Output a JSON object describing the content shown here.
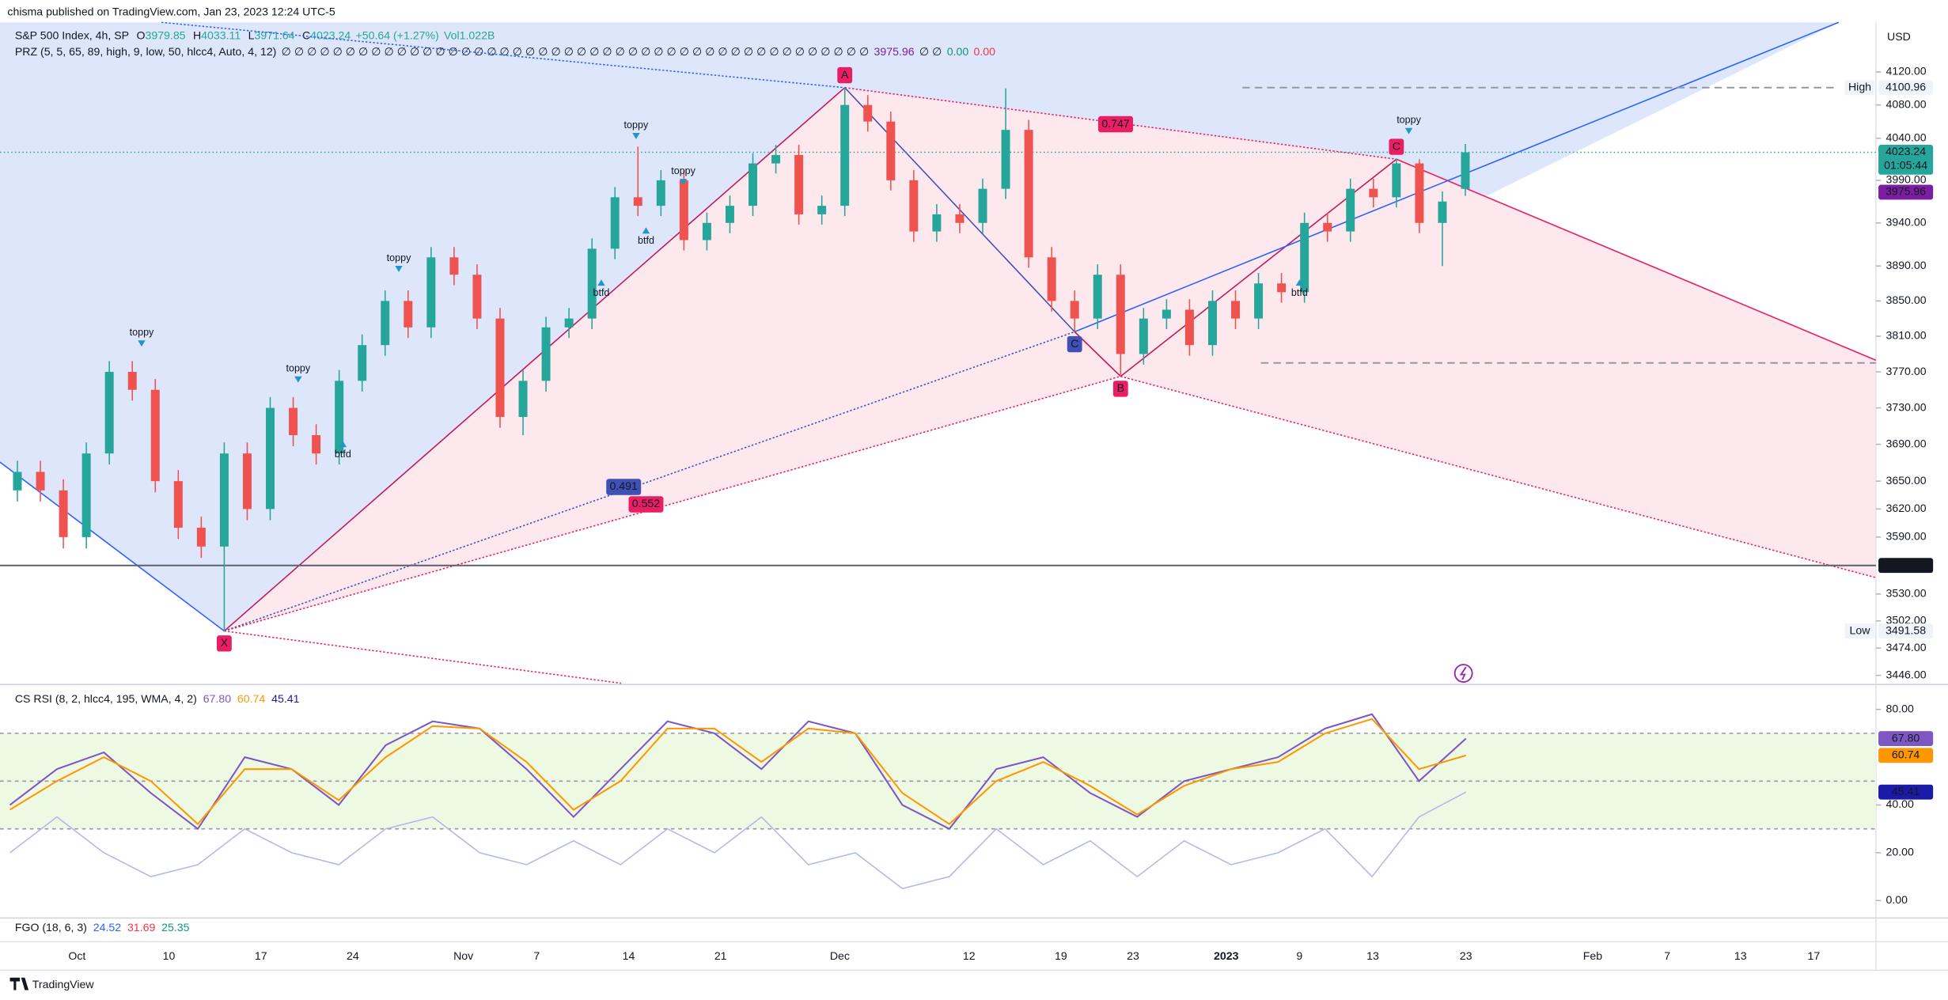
{
  "header": {
    "publisher": "chisma published on TradingView.com, Jan 23, 2023 12:24 UTC-5",
    "symbol": "S&P 500 Index, 4h, SP",
    "ohlc_letters": [
      "O",
      "H",
      "L",
      "C"
    ],
    "change": "+50.64 (+1.27%)",
    "volume": "Vol1.022B",
    "indicator": "PRZ (5, 5, 65, 89, high, 9, low, 50, hlcc4, Auto, 4, 12)",
    "indicator_nulls": "∅ ∅ ∅ ∅ ∅ ∅ ∅ ∅ ∅ ∅ ∅ ∅ ∅ ∅ ∅ ∅ ∅ ∅ ∅ ∅ ∅ ∅ ∅ ∅ ∅ ∅ ∅ ∅ ∅ ∅ ∅ ∅ ∅ ∅ ∅ ∅ ∅ ∅ ∅ ∅ ∅ ∅ ∅ ∅ ∅ ∅",
    "indicator_tail": [
      "∅ ∅",
      "0.00",
      "0.00"
    ]
  },
  "chart_data": [
    {
      "type": "candlestick",
      "currency": "USD",
      "log": true,
      "ylim": [
        3438,
        4181
      ],
      "yticks": [
        {
          "value": 4120,
          "label": "4120.00"
        },
        {
          "value": 4080,
          "label": "4080.00"
        },
        {
          "value": 4040,
          "label": "4040.00"
        },
        {
          "value": 3990,
          "label": "3990.00"
        },
        {
          "value": 3940,
          "label": "3940.00"
        },
        {
          "value": 3890,
          "label": "3890.00"
        },
        {
          "value": 3850,
          "label": "3850.00"
        },
        {
          "value": 3810,
          "label": "3810.00"
        },
        {
          "value": 3770,
          "label": "3770.00"
        },
        {
          "value": 3730,
          "label": "3730.00"
        },
        {
          "value": 3690,
          "label": "3690.00"
        },
        {
          "value": 3650,
          "label": "3650.00"
        },
        {
          "value": 3620,
          "label": "3620.00"
        },
        {
          "value": 3590,
          "label": "3590.00"
        },
        {
          "value": 3530,
          "label": "3530.00"
        },
        {
          "value": 3502,
          "label": "3502.00"
        },
        {
          "value": 3474,
          "label": "3474.00"
        },
        {
          "value": 3446,
          "label": "3446.00"
        }
      ],
      "xticks": [
        "Oct",
        "10",
        "17",
        "24",
        "Nov",
        "7",
        "14",
        "21",
        "Dec",
        "12",
        "19",
        "23",
        "2023",
        "9",
        "13",
        "23",
        "Feb",
        "7",
        "13",
        "17"
      ],
      "up_color": "#26a69a",
      "down_color": "#ef5350",
      "open": [
        3640,
        3660,
        3640,
        3590,
        3680,
        3770,
        3750,
        3650,
        3600,
        3580,
        3680,
        3620,
        3730,
        3700,
        3680,
        3760,
        3800,
        3850,
        3820,
        3900,
        3880,
        3830,
        3720,
        3760,
        3820,
        3830,
        3910,
        3970,
        3960,
        3990,
        3920,
        3940,
        3960,
        4010,
        4020,
        3950,
        3960,
        4080,
        4060,
        3990,
        3930,
        3950,
        3940,
        3980,
        4050,
        3900,
        3850,
        3830,
        3880,
        3790,
        3830,
        3840,
        3800,
        3850,
        3830,
        3870,
        3860,
        3940,
        3930,
        3980,
        3970,
        4010,
        3940,
        3979.85
      ],
      "high": [
        3672,
        3672,
        3652,
        3692,
        3782,
        3782,
        3762,
        3662,
        3612,
        3692,
        3692,
        3742,
        3742,
        3712,
        3772,
        3812,
        3862,
        3862,
        3912,
        3912,
        3892,
        3842,
        3772,
        3832,
        3842,
        3922,
        3982,
        4030,
        4002,
        4002,
        3952,
        3972,
        4022,
        4032,
        4032,
        3972,
        4100.96,
        4092,
        4072,
        4002,
        3962,
        3962,
        3992,
        4100,
        4062,
        3912,
        3862,
        3892,
        3892,
        3842,
        3852,
        3852,
        3862,
        3862,
        3882,
        3882,
        3952,
        3952,
        3992,
        3992,
        4015,
        4015,
        3977,
        4033.11
      ],
      "low": [
        3628,
        3628,
        3578,
        3578,
        3668,
        3738,
        3638,
        3588,
        3568,
        3491.58,
        3608,
        3608,
        3688,
        3668,
        3668,
        3748,
        3788,
        3808,
        3808,
        3868,
        3818,
        3708,
        3700,
        3748,
        3808,
        3818,
        3898,
        3948,
        3948,
        3908,
        3908,
        3928,
        3948,
        3998,
        3938,
        3938,
        3948,
        4048,
        3978,
        3918,
        3918,
        3928,
        3928,
        3968,
        3888,
        3838,
        3815,
        3818,
        3765,
        3778,
        3818,
        3788,
        3788,
        3818,
        3818,
        3848,
        3848,
        3918,
        3918,
        3958,
        3958,
        3928,
        3890,
        3971.64
      ],
      "close": [
        3660,
        3640,
        3590,
        3680,
        3770,
        3750,
        3650,
        3600,
        3580,
        3680,
        3620,
        3730,
        3700,
        3680,
        3760,
        3800,
        3850,
        3820,
        3900,
        3880,
        3830,
        3720,
        3760,
        3820,
        3830,
        3910,
        3970,
        3960,
        3990,
        3920,
        3940,
        3960,
        4010,
        4020,
        3950,
        3960,
        4080,
        4060,
        3990,
        3930,
        3950,
        3940,
        3980,
        4050,
        3900,
        3850,
        3830,
        3880,
        3790,
        3830,
        3840,
        3800,
        3850,
        3830,
        3870,
        3860,
        3940,
        3930,
        3980,
        3970,
        4010,
        3940,
        3965,
        4023.24
      ],
      "price_labels": [
        {
          "name": "High",
          "value": 4100.96,
          "color": "#f0f3fa",
          "text_color": "#131722"
        },
        {
          "value": 4023.24,
          "countdown": "01:05:44",
          "color": "#26a69a",
          "text_color": "#ffffff"
        },
        {
          "value": 3975.96,
          "color": "#7b1fa2",
          "text_color": "#ffffff"
        },
        {
          "value": 3560,
          "label": "3560.00",
          "color": "#131722",
          "text_color": "#ffffff"
        },
        {
          "name": "Low",
          "value": 3491.58,
          "color": "#f0f3fa",
          "text_color": "#131722"
        }
      ],
      "levels": [
        3780
      ],
      "pattern": [
        {
          "label": "X",
          "color": "#e91e63"
        },
        {
          "label": "A",
          "color": "#e91e63"
        },
        {
          "label": "B",
          "color": "#e91e63"
        },
        {
          "label": "C",
          "color": "#e91e63"
        },
        {
          "label": "C",
          "color": "#3f51b5"
        }
      ],
      "ratios": [
        {
          "value": 0.747,
          "color": "#e91e63"
        },
        {
          "value": 0.491,
          "color": "#3f51b5"
        },
        {
          "value": 0.552,
          "color": "#e91e63"
        }
      ],
      "signals": [
        "toppy",
        "toppy",
        "toppy",
        "toppy",
        "toppy",
        "toppy",
        "btfd",
        "btfd",
        "btfd",
        "btfd"
      ]
    },
    {
      "type": "line",
      "title": "CS RSI (8, 2, hlcc4, 195, WMA, 4, 2)",
      "ylim": [
        -6.8,
        89.4
      ],
      "yticks": [
        {
          "value": 80,
          "label": "80.00"
        },
        {
          "value": 40,
          "label": "40.00"
        },
        {
          "value": 20,
          "label": "20.00"
        },
        {
          "value": 0,
          "label": "0.00"
        }
      ],
      "bands": [
        30,
        50,
        70
      ],
      "series": [
        {
          "color": "#7e57c2",
          "label_color": "#7e57c2",
          "label": "67.80",
          "values": [
            40,
            55,
            62,
            45,
            30,
            60,
            55,
            40,
            65,
            75,
            72,
            55,
            35,
            55,
            75,
            70,
            55,
            75,
            70,
            40,
            30,
            55,
            60,
            45,
            35,
            50,
            55,
            60,
            72,
            78,
            50,
            67.8
          ]
        },
        {
          "color": "#ff9800",
          "label_color": "#ff9800",
          "label": "60.74",
          "values": [
            38,
            50,
            60,
            50,
            32,
            55,
            55,
            42,
            60,
            73,
            72,
            58,
            38,
            50,
            72,
            72,
            58,
            72,
            70,
            45,
            32,
            50,
            58,
            48,
            36,
            48,
            55,
            58,
            70,
            76,
            55,
            60.74
          ]
        },
        {
          "color": "#b3b8e6",
          "label_color": "#1a1aa6",
          "label": "45.41",
          "values": [
            20,
            35,
            20,
            10,
            15,
            30,
            20,
            15,
            30,
            35,
            20,
            15,
            25,
            15,
            30,
            20,
            35,
            15,
            20,
            5,
            10,
            30,
            15,
            25,
            10,
            25,
            15,
            20,
            30,
            10,
            35,
            45.41
          ]
        }
      ]
    }
  ],
  "fgo": {
    "title": "FGO (18, 6, 3)",
    "values": [
      24.52,
      31.69,
      25.35
    ],
    "colors": [
      "#2962ff",
      "#f23645",
      "#089981"
    ]
  },
  "footer": "TradingView"
}
